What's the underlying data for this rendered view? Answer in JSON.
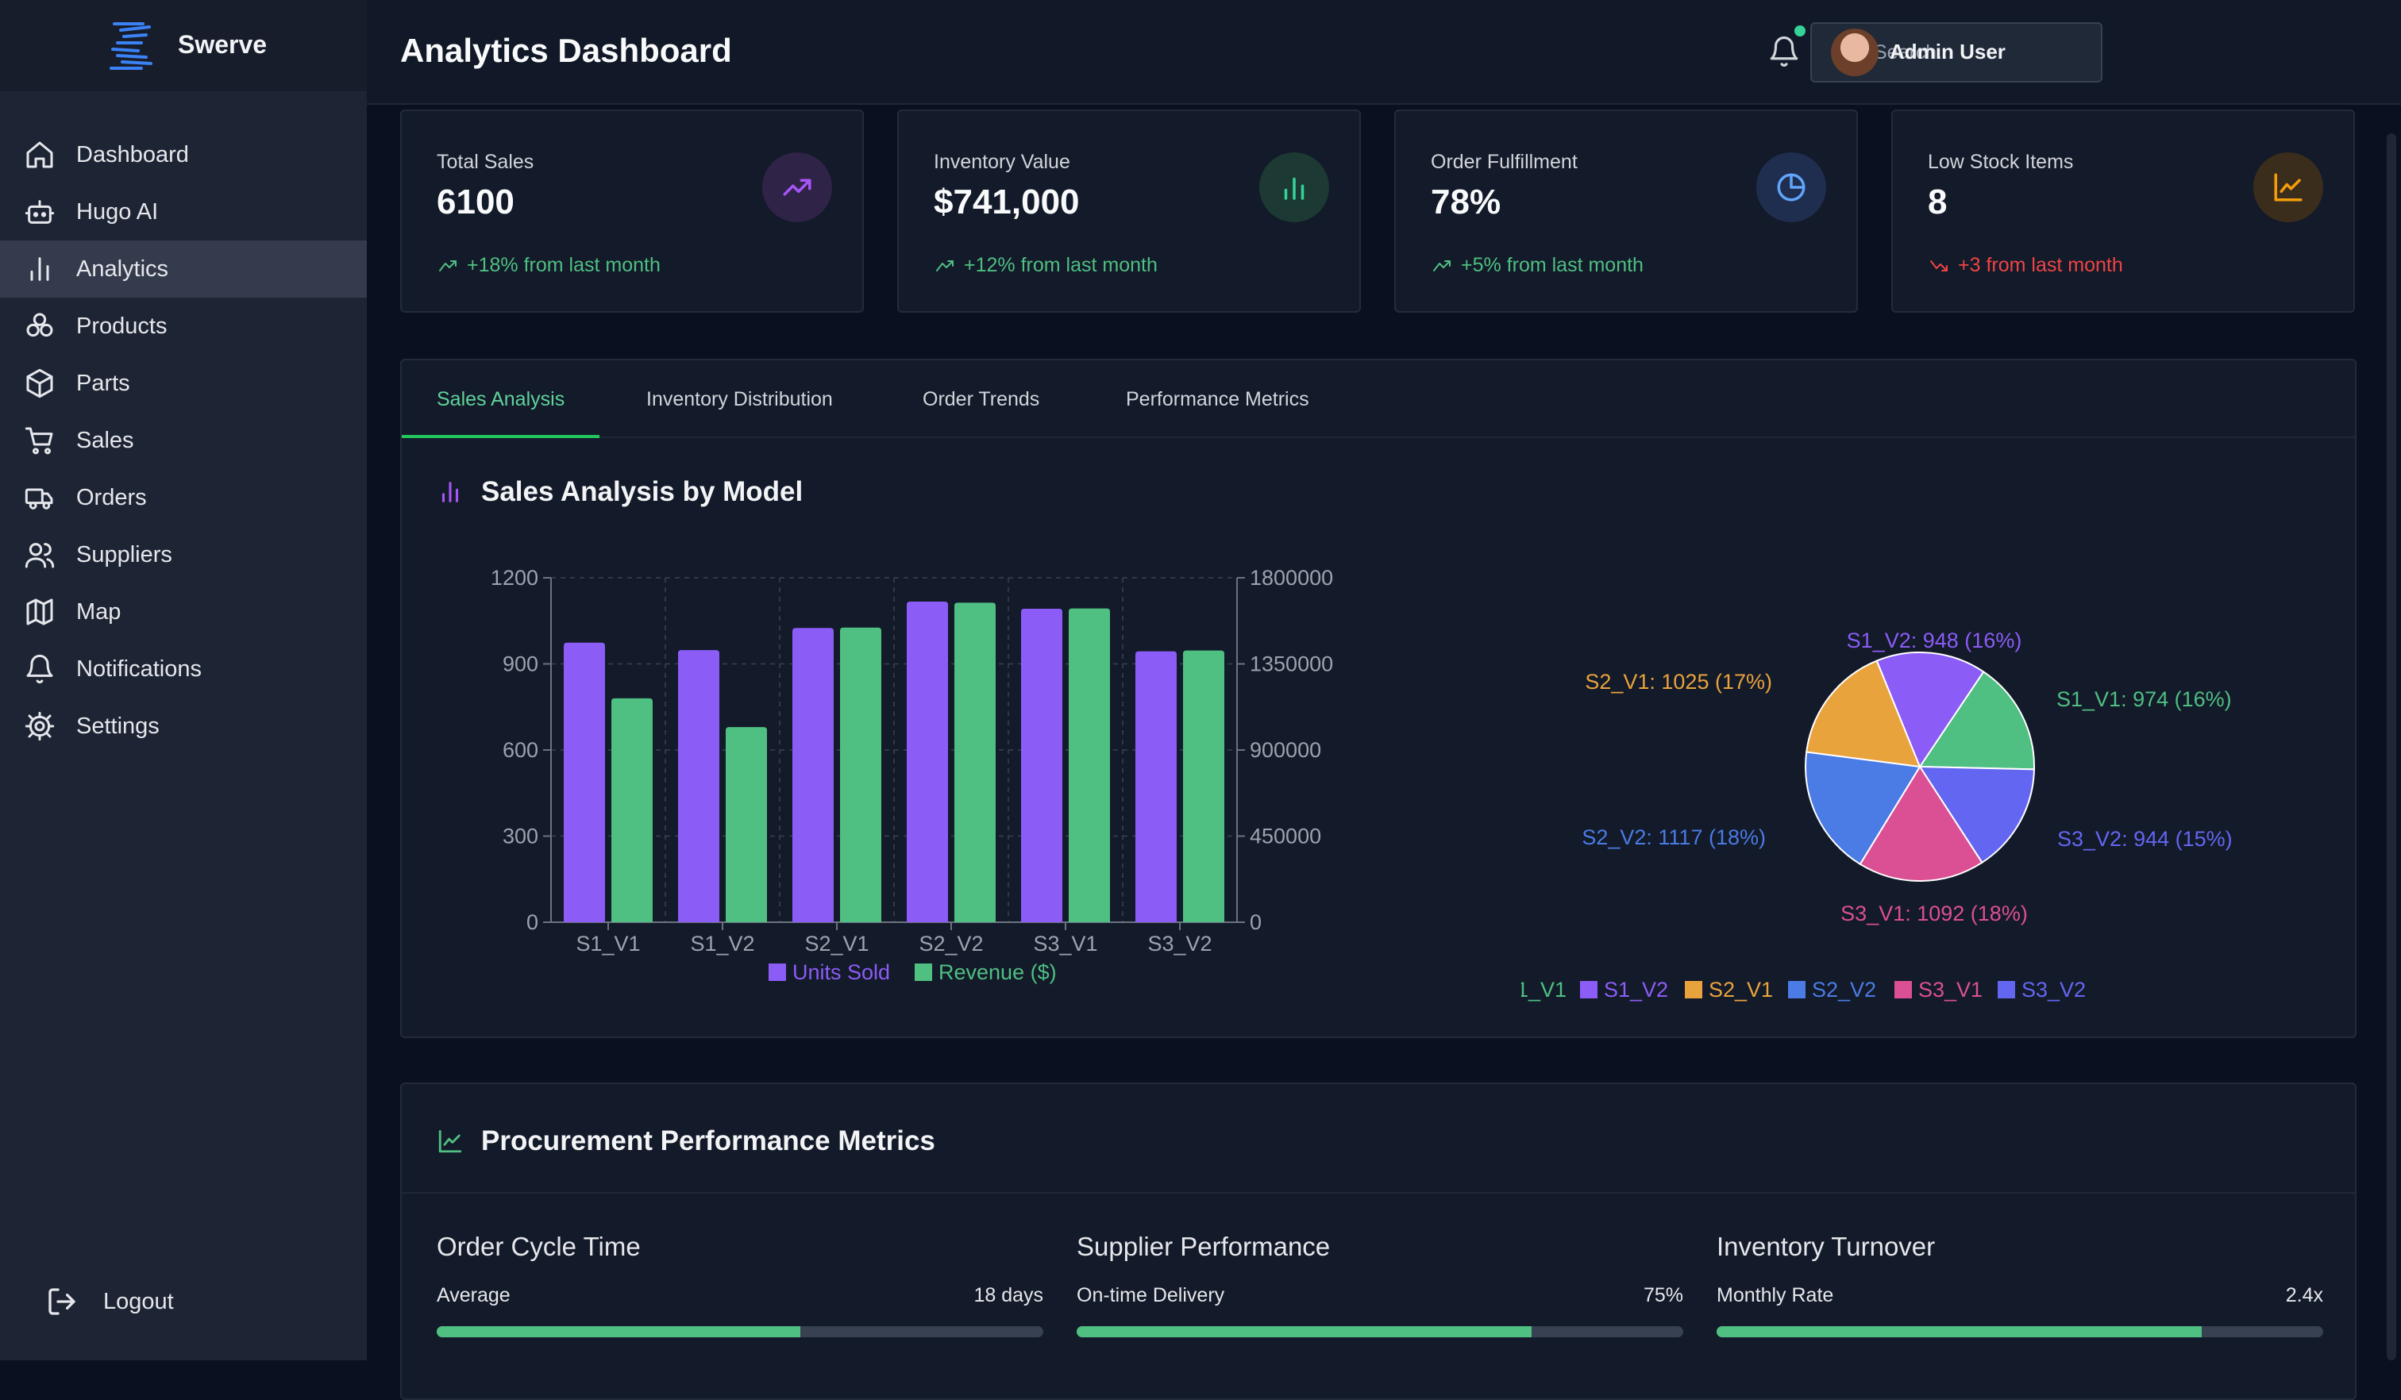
{
  "app": {
    "name": "Swerve",
    "page_title": "Analytics Dashboard"
  },
  "sidebar": {
    "items": [
      {
        "label": "Dashboard",
        "icon": "home-icon"
      },
      {
        "label": "Hugo AI",
        "icon": "bot-icon"
      },
      {
        "label": "Analytics",
        "icon": "bar-chart-icon",
        "active": true
      },
      {
        "label": "Products",
        "icon": "boxes-icon"
      },
      {
        "label": "Parts",
        "icon": "package-icon"
      },
      {
        "label": "Sales",
        "icon": "cart-icon"
      },
      {
        "label": "Orders",
        "icon": "truck-icon"
      },
      {
        "label": "Suppliers",
        "icon": "users-icon"
      },
      {
        "label": "Map",
        "icon": "map-icon"
      },
      {
        "label": "Notifications",
        "icon": "bell-icon"
      },
      {
        "label": "Settings",
        "icon": "gear-icon"
      }
    ],
    "logout": "Logout"
  },
  "header": {
    "search_placeholder": "Search...",
    "user_name": "Admin User"
  },
  "cards": [
    {
      "label": "Total Sales",
      "value": "6100",
      "change": "+18% from last month",
      "trend": "up",
      "color": "#a855f7"
    },
    {
      "label": "Inventory Value",
      "value": "$741,000",
      "change": "+12% from last month",
      "trend": "up",
      "color": "#34d399"
    },
    {
      "label": "Order Fulfillment",
      "value": "78%",
      "change": "+5% from last month",
      "trend": "up",
      "color": "#60a5fa"
    },
    {
      "label": "Low Stock Items",
      "value": "8",
      "change": "+3 from last month",
      "trend": "down",
      "color": "#f59e0b"
    }
  ],
  "tabs": [
    "Sales Analysis",
    "Inventory Distribution",
    "Order Trends",
    "Performance Metrics"
  ],
  "sales_section": {
    "title": "Sales Analysis by Model"
  },
  "chart_data": [
    {
      "type": "bar",
      "categories": [
        "S1_V1",
        "S1_V2",
        "S2_V1",
        "S2_V2",
        "S3_V1",
        "S3_V2"
      ],
      "series": [
        {
          "name": "Units Sold",
          "axis": "left",
          "color": "#8b5cf6",
          "values": [
            974,
            948,
            1025,
            1117,
            1092,
            944
          ]
        },
        {
          "name": "Revenue ($)",
          "axis": "right",
          "color": "#4fbf82",
          "values": [
            1170000,
            1020000,
            1540000,
            1670000,
            1640000,
            1420000
          ]
        }
      ],
      "y_left": {
        "ticks": [
          0,
          300,
          600,
          900,
          1200
        ],
        "range": [
          0,
          1200
        ]
      },
      "y_right": {
        "ticks": [
          0,
          450000,
          900000,
          1350000,
          1800000
        ],
        "range": [
          0,
          1800000
        ]
      },
      "grid": true,
      "legend": "bottom"
    },
    {
      "type": "pie",
      "slices": [
        {
          "name": "S1_V1",
          "value": 974,
          "label": "S1_V1: 974 (16%)",
          "color": "#4fbf82"
        },
        {
          "name": "S1_V2",
          "value": 948,
          "label": "S1_V2: 948 (16%)",
          "color": "#8b5cf6"
        },
        {
          "name": "S2_V1",
          "value": 1025,
          "label": "S2_V1: 1025 (17%)",
          "color": "#e8a33d"
        },
        {
          "name": "S2_V2",
          "value": 1117,
          "label": "S2_V2: 1117 (18%)",
          "color": "#4b7be5"
        },
        {
          "name": "S3_V1",
          "value": 1092,
          "label": "S3_V1: 1092 (18%)",
          "color": "#db4f94"
        },
        {
          "name": "S3_V2",
          "value": 944,
          "label": "S3_V2: 944 (15%)",
          "color": "#6366f1"
        }
      ],
      "legend": "bottom"
    }
  ],
  "procurement": {
    "title": "Procurement Performance Metrics",
    "metrics": [
      {
        "title": "Order Cycle Time",
        "label": "Average",
        "value": "18 days",
        "fill": 0.6
      },
      {
        "title": "Supplier Performance",
        "label": "On-time Delivery",
        "value": "75%",
        "fill": 0.75
      },
      {
        "title": "Inventory Turnover",
        "label": "Monthly Rate",
        "value": "2.4x",
        "fill": 0.8
      }
    ]
  }
}
